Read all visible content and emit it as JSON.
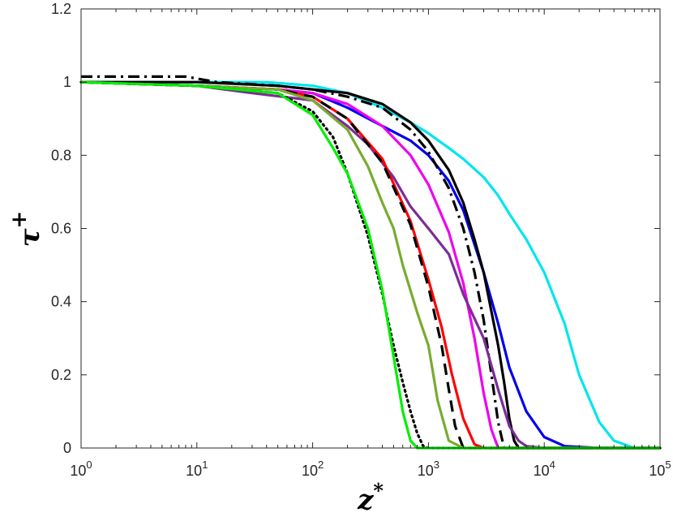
{
  "chart_data": {
    "type": "line",
    "xscale": "log",
    "xlim": [
      1,
      100000
    ],
    "ylim": [
      0,
      1.2
    ],
    "xlabel": "z*",
    "ylabel": "τ+",
    "grid": false,
    "x_ticks": [
      1,
      10,
      100,
      1000,
      10000,
      100000
    ],
    "x_tick_labels": [
      {
        "base": "10",
        "exp": "0"
      },
      {
        "base": "10",
        "exp": "1"
      },
      {
        "base": "10",
        "exp": "2"
      },
      {
        "base": "10",
        "exp": "3"
      },
      {
        "base": "10",
        "exp": "4"
      },
      {
        "base": "10",
        "exp": "5"
      }
    ],
    "y_ticks": [
      0,
      0.2,
      0.4,
      0.6,
      0.8,
      1,
      1.2
    ],
    "y_tick_labels": [
      "0",
      "0.2",
      "0.4",
      "0.6",
      "0.8",
      "1",
      "1.2"
    ],
    "series": [
      {
        "color": "#00e5ee",
        "style": "solid",
        "x": [
          1,
          10,
          40,
          100,
          200,
          400,
          700,
          1000,
          1500,
          2000,
          3000,
          4000,
          5000,
          7000,
          10000,
          15000,
          20000,
          30000,
          40000,
          60000,
          100000
        ],
        "y": [
          1.0,
          1.0,
          1.0,
          0.99,
          0.97,
          0.93,
          0.89,
          0.86,
          0.82,
          0.79,
          0.74,
          0.69,
          0.64,
          0.57,
          0.48,
          0.34,
          0.2,
          0.07,
          0.02,
          0.0,
          0.0
        ]
      },
      {
        "color": "#0000ee",
        "style": "solid",
        "x": [
          1,
          10,
          50,
          100,
          200,
          400,
          700,
          1000,
          1500,
          2000,
          3000,
          4000,
          5000,
          7000,
          10000,
          15000,
          30000,
          100000
        ],
        "y": [
          1.0,
          0.99,
          0.98,
          0.97,
          0.93,
          0.88,
          0.84,
          0.8,
          0.73,
          0.65,
          0.48,
          0.34,
          0.22,
          0.1,
          0.03,
          0.005,
          0.0,
          0.0
        ]
      },
      {
        "color": "#000000",
        "style": "solid",
        "x": [
          1,
          10,
          50,
          100,
          200,
          400,
          700,
          1000,
          1500,
          2000,
          2500,
          3000,
          4000,
          4500,
          5000,
          5500,
          6000,
          100000
        ],
        "y": [
          1.0,
          1.0,
          0.99,
          0.98,
          0.97,
          0.94,
          0.89,
          0.84,
          0.76,
          0.67,
          0.57,
          0.48,
          0.28,
          0.18,
          0.08,
          0.02,
          0.0,
          0.0
        ]
      },
      {
        "color": "#000000",
        "style": "dashdot",
        "x": [
          1,
          8,
          15,
          50,
          100,
          200,
          400,
          700,
          1000,
          1500,
          2000,
          2500,
          3000,
          3500,
          4000,
          4500,
          100000
        ],
        "y": [
          1.015,
          1.015,
          1.0,
          0.99,
          0.98,
          0.96,
          0.93,
          0.87,
          0.81,
          0.71,
          0.6,
          0.48,
          0.35,
          0.2,
          0.07,
          0.0,
          0.0
        ]
      },
      {
        "color": "#ee00ee",
        "style": "solid",
        "x": [
          1,
          10,
          50,
          100,
          200,
          400,
          700,
          1000,
          1500,
          2000,
          2500,
          3000,
          3500,
          4000,
          100000
        ],
        "y": [
          1.0,
          0.99,
          0.98,
          0.97,
          0.94,
          0.88,
          0.8,
          0.72,
          0.59,
          0.45,
          0.3,
          0.15,
          0.05,
          0.0,
          0.0
        ]
      },
      {
        "color": "#7b2d96",
        "style": "solid",
        "x": [
          1,
          10,
          30,
          100,
          200,
          300,
          500,
          700,
          1000,
          1500,
          2000,
          3000,
          4000,
          5000,
          6000,
          7000,
          10000,
          30000,
          100000
        ],
        "y": [
          1.0,
          0.99,
          0.97,
          0.95,
          0.88,
          0.83,
          0.74,
          0.66,
          0.6,
          0.53,
          0.42,
          0.3,
          0.16,
          0.06,
          0.02,
          0.005,
          0.0,
          0.0,
          0.0
        ]
      },
      {
        "color": "#ff0000",
        "style": "solid",
        "x": [
          1,
          10,
          50,
          100,
          200,
          400,
          700,
          1000,
          1300,
          1600,
          2000,
          2500,
          3000,
          100000
        ],
        "y": [
          1.0,
          0.99,
          0.98,
          0.96,
          0.9,
          0.79,
          0.62,
          0.46,
          0.33,
          0.2,
          0.08,
          0.01,
          0.0,
          0.0
        ]
      },
      {
        "color": "#000000",
        "style": "dashed",
        "x": [
          1,
          10,
          50,
          100,
          200,
          400,
          700,
          1000,
          1300,
          1500,
          1700,
          2000,
          100000
        ],
        "y": [
          1.0,
          0.99,
          0.98,
          0.96,
          0.9,
          0.78,
          0.61,
          0.44,
          0.28,
          0.16,
          0.06,
          0.0,
          0.0
        ]
      },
      {
        "color": "#77ac30",
        "style": "solid",
        "x": [
          1,
          10,
          50,
          100,
          200,
          300,
          400,
          500,
          600,
          800,
          1000,
          1200,
          1500,
          2000,
          100000
        ],
        "y": [
          1.0,
          0.99,
          0.98,
          0.95,
          0.87,
          0.77,
          0.67,
          0.6,
          0.5,
          0.37,
          0.28,
          0.13,
          0.02,
          0.0,
          0.0
        ]
      },
      {
        "color": "#000000",
        "style": "dotted",
        "x": [
          1,
          10,
          50,
          100,
          150,
          200,
          300,
          400,
          500,
          600,
          700,
          800,
          900,
          1000,
          100000
        ],
        "y": [
          1.0,
          0.99,
          0.97,
          0.92,
          0.85,
          0.75,
          0.58,
          0.42,
          0.28,
          0.18,
          0.1,
          0.04,
          0.005,
          0.0,
          0.0
        ]
      },
      {
        "color": "#00ee00",
        "style": "solid",
        "x": [
          1,
          10,
          50,
          100,
          150,
          200,
          300,
          400,
          500,
          600,
          700,
          800,
          1000,
          100000
        ],
        "y": [
          1.0,
          0.99,
          0.97,
          0.91,
          0.82,
          0.75,
          0.6,
          0.43,
          0.25,
          0.1,
          0.02,
          0.0,
          0.0,
          0.0
        ]
      }
    ]
  }
}
